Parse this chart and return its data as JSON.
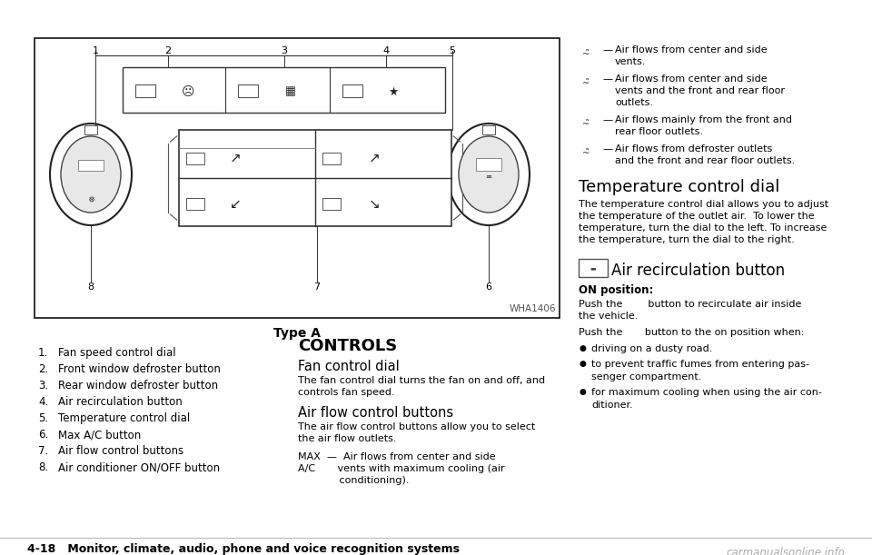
{
  "bg_color": "#ffffff",
  "page_width": 9.6,
  "page_height": 6.11,
  "wha_code": "WHA1406",
  "type_a_label": "Type A",
  "controls_header": "CONTROLS",
  "fan_control_header": "Fan control dial",
  "fan_control_text1": "The fan control dial turns the fan on and off, and",
  "fan_control_text2": "controls fan speed.",
  "airflow_header": "Air flow control buttons",
  "airflow_text1": "The air flow control buttons allow you to select",
  "airflow_text2": "the air flow outlets.",
  "max_ac_line1": "MAX  —  Air flows from center and side",
  "max_ac_line2": "A/C       vents with maximum cooling (air",
  "max_ac_line3": "             conditioning).",
  "numbered_items": [
    "Fan speed control dial",
    "Front window defroster button",
    "Rear window defroster button",
    "Air recirculation button",
    "Temperature control dial",
    "Max A/C button",
    "Air flow control buttons",
    "Air conditioner ON/OFF button"
  ],
  "temp_dial_header": "Temperature control dial",
  "temp_dial_text1": "The temperature control dial allows you to adjust",
  "temp_dial_text2": "the temperature of the outlet air.  To lower the",
  "temp_dial_text3": "temperature, turn the dial to the left. To increase",
  "temp_dial_text4": "the temperature, turn the dial to the right.",
  "air_recirc_header": "Air recirculation button",
  "on_position_label": "ON position:",
  "push1b": "button to recirculate air inside",
  "push1c": "the vehicle.",
  "push2b": "button to the on position when:",
  "bullet_items": [
    "driving on a dusty road.",
    "to prevent traffic fumes from entering pas-\nsenger compartment.",
    "for maximum cooling when using the air con-\nditioner."
  ],
  "footer_text": "4-18   Monitor, climate, audio, phone and voice recognition systems",
  "watermark": "carmanualsonline.info",
  "airflow_right": [
    [
      "Air flows from center and side",
      "vents."
    ],
    [
      "Air flows from center and side",
      "vents and the front and rear floor",
      "outlets."
    ],
    [
      "Air flows mainly from the front and",
      "rear floor outlets."
    ],
    [
      "Air flows from defroster outlets",
      "and the front and rear floor outlets."
    ]
  ]
}
